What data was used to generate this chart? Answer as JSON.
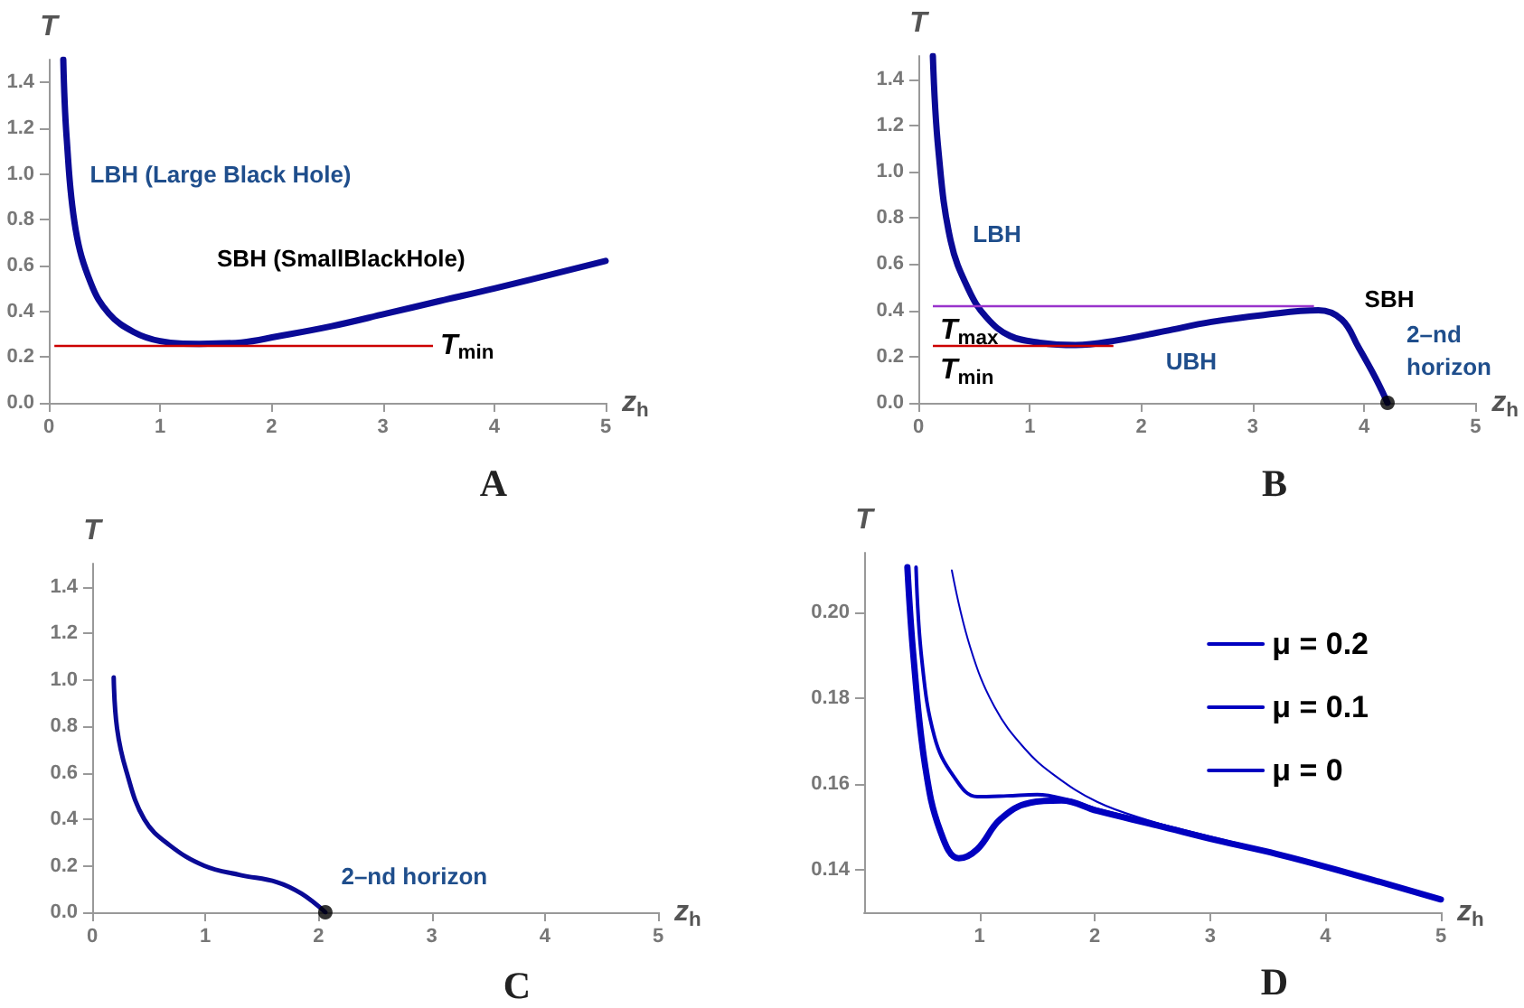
{
  "chart_data": [
    {
      "type": "line",
      "title": "A",
      "xlabel": "z$_{h}$",
      "ylabel": "T",
      "xlim": [
        0,
        5
      ],
      "ylim": [
        0,
        1.5
      ],
      "xticks": [
        0,
        1,
        2,
        3,
        4,
        5
      ],
      "yticks": [
        {
          "value": 0,
          "label": "0.0"
        },
        0.2,
        0.4,
        0.6,
        0.8,
        {
          "value": 1,
          "label": "1.0"
        },
        1.2,
        1.4
      ],
      "marker": "none",
      "series": [
        {
          "color": "#0a0a96",
          "x": [
            0.13,
            0.16,
            0.24,
            0.38,
            0.54,
            0.76,
            1.0,
            1.35,
            1.73,
            2.05,
            2.54,
            3.03,
            3.51,
            4.0,
            5.0
          ],
          "values": [
            1.5,
            1.16,
            0.76,
            0.52,
            0.39,
            0.31,
            0.27,
            0.258,
            0.264,
            0.29,
            0.335,
            0.39,
            0.445,
            0.5,
            0.62
          ]
        }
      ],
      "ref_lines": [
        {
          "axis": "y",
          "value": 0.25,
          "label": "T$_{min}$",
          "color": "#cc0000"
        }
      ],
      "annotations": [
        "LBH (Large Black Hole)",
        "SBH (SmallBlackHole)"
      ]
    },
    {
      "type": "line",
      "title": "B",
      "xlabel": "z$_{h}$",
      "ylabel": "T",
      "xlim": [
        0,
        5
      ],
      "ylim": [
        0,
        1.5
      ],
      "xticks": [
        0,
        1,
        2,
        3,
        4,
        5
      ],
      "yticks": [
        {
          "value": 0,
          "label": "0.0"
        },
        0.2,
        0.4,
        0.6,
        0.8,
        {
          "value": 1,
          "label": "1.0"
        },
        1.2,
        1.4
      ],
      "marker": "none",
      "series": [
        {
          "color": "#0a0a96",
          "x": [
            0.13,
            0.18,
            0.29,
            0.45,
            0.61,
            0.82,
            1.09,
            1.41,
            1.78,
            2.21,
            2.63,
            3.1,
            3.59,
            3.8,
            3.95,
            4.1,
            4.21
          ],
          "values": [
            1.5,
            1.09,
            0.7,
            0.49,
            0.37,
            0.29,
            0.26,
            0.25,
            0.27,
            0.31,
            0.35,
            0.38,
            0.4,
            0.36,
            0.24,
            0.11,
            0
          ]
        },
        {
          "type": "scatter",
          "marker": "circle",
          "color": "#000000",
          "x": [
            4.21
          ],
          "values": [
            0
          ]
        }
      ],
      "ref_lines": [
        {
          "axis": "y",
          "value": 0.42,
          "label": "T$_{max}$",
          "color": "#9933cc"
        },
        {
          "axis": "y",
          "value": 0.25,
          "label": "T$_{min}$",
          "color": "#cc0000"
        }
      ],
      "annotations": [
        "LBH",
        "UBH",
        "SBH",
        "2–nd horizon"
      ]
    },
    {
      "type": "line",
      "title": "C",
      "xlabel": "z$_{h}$",
      "ylabel": "T",
      "xlim": [
        0,
        5
      ],
      "ylim": [
        0,
        1.5
      ],
      "xticks": [
        0,
        1,
        2,
        3,
        4,
        5
      ],
      "yticks": [
        {
          "value": 0,
          "label": "0.0"
        },
        0.2,
        0.4,
        0.6,
        0.8,
        {
          "value": 1,
          "label": "1.0"
        },
        1.2,
        1.4
      ],
      "marker": "none",
      "series": [
        {
          "color": "#0a0a96",
          "x": [
            0.19,
            0.22,
            0.3,
            0.46,
            0.68,
            0.99,
            1.31,
            1.63,
            1.85,
            2.06
          ],
          "values": [
            1.01,
            0.79,
            0.61,
            0.4,
            0.29,
            0.2,
            0.16,
            0.13,
            0.08,
            0
          ]
        },
        {
          "type": "scatter",
          "marker": "circle",
          "color": "#000000",
          "x": [
            2.06
          ],
          "values": [
            0
          ]
        }
      ],
      "annotations": [
        "2–nd horizon"
      ]
    },
    {
      "type": "line",
      "title": "D",
      "xlabel": "z$_{h}$",
      "ylabel": "T",
      "xlim": [
        0,
        5
      ],
      "ylim": [
        0.13,
        0.214
      ],
      "xticks": [
        1,
        2,
        3,
        4,
        5
      ],
      "yticks": [
        0.14,
        0.16,
        0.18,
        {
          "value": 0.2,
          "label": "0.20"
        }
      ],
      "marker": "none",
      "legend": "top right",
      "series": [
        {
          "name": "μ = 0.2",
          "color": "#0000c0",
          "x": [
            0.375,
            0.43,
            0.53,
            0.66,
            0.82,
            0.98,
            1.18,
            1.44,
            1.71,
            2.02,
            2.54,
            3.06,
            3.58,
            4.1,
            5.0
          ],
          "values": [
            0.2106,
            0.189,
            0.164,
            0.149,
            0.1426,
            0.1447,
            0.1517,
            0.1556,
            0.1561,
            0.1537,
            0.1503,
            0.1468,
            0.1436,
            0.1399,
            0.133
          ]
        },
        {
          "name": "μ = 0.1",
          "color": "#0000c0",
          "x": [
            0.45,
            0.5,
            0.61,
            0.77,
            0.98,
            1.24,
            1.5,
            1.76,
            2.02,
            2.54,
            3.06,
            3.58,
            4.1,
            5.0
          ],
          "values": [
            0.2106,
            0.189,
            0.171,
            0.162,
            0.157,
            0.1572,
            0.1575,
            0.1563,
            0.154,
            0.1506,
            0.1471,
            0.1436,
            0.1399,
            0.133
          ]
        },
        {
          "name": "μ = 0",
          "color": "#0000c0",
          "x": [
            0.76,
            0.92,
            1.13,
            1.39,
            1.65,
            2.02,
            2.44,
            3.06,
            3.58,
            4.1,
            5.0
          ],
          "values": [
            0.2099,
            0.1919,
            0.178,
            0.1683,
            0.162,
            0.1558,
            0.1517,
            0.1471,
            0.1436,
            0.1399,
            0.133
          ]
        }
      ]
    }
  ]
}
